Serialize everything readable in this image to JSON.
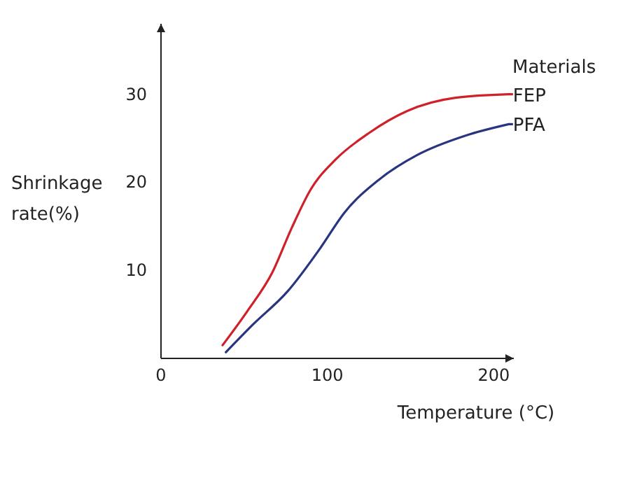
{
  "chart_data": {
    "type": "line",
    "xlabel": "Temperature (°C)",
    "ylabel": "Shrinkage rate(%)",
    "legend_title": "Materials",
    "legend": "right",
    "xlim": [
      0,
      212
    ],
    "ylim": [
      0,
      38
    ],
    "xticks": [
      0,
      100,
      200
    ],
    "yticks": [
      10,
      20,
      30
    ],
    "grid": false,
    "series": [
      {
        "name": "FEP",
        "color": "#d0202a",
        "x": [
          37,
          52,
          67,
          78.5,
          90,
          105,
          125,
          148,
          177,
          209
        ],
        "values": [
          1.5,
          5.4,
          9.8,
          14.8,
          19.2,
          22.6,
          25.6,
          28.1,
          29.6,
          30
        ]
      },
      {
        "name": "PFA",
        "color": "#283580",
        "x": [
          39,
          55,
          76,
          96,
          110,
          131,
          154,
          183,
          209
        ],
        "values": [
          0.7,
          3.8,
          7.6,
          12.6,
          16.5,
          20.3,
          23.1,
          25.3,
          26.6
        ]
      }
    ]
  }
}
